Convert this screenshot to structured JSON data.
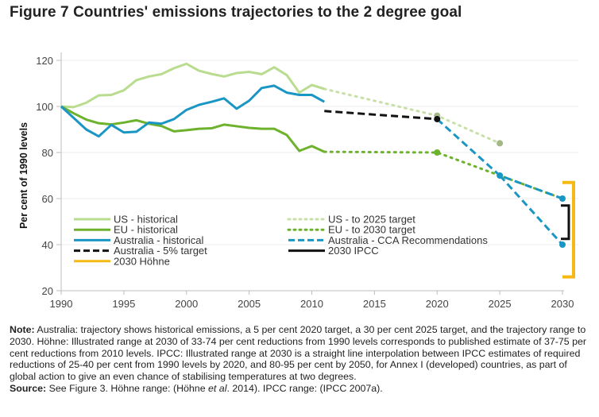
{
  "title": "Figure 7 Countries' emissions trajectories to the 2 degree goal",
  "chart_data": {
    "type": "line",
    "title": "Figure 7 Countries' emissions trajectories to the 2 degree goal",
    "xlabel": "",
    "ylabel": "Per cent of 1990 levels",
    "xlim": [
      1990,
      2030
    ],
    "ylim": [
      20,
      130
    ],
    "xticks": [
      1990,
      1995,
      2000,
      2005,
      2010,
      2015,
      2020,
      2025,
      2030
    ],
    "yticks": [
      20,
      40,
      60,
      80,
      100,
      120
    ],
    "grid": "horizontal",
    "legend_position": "inside-bottom-left",
    "colors": {
      "us": "#b9dc8f",
      "eu": "#6db22c",
      "australia": "#1a96c4",
      "black": "#111111",
      "hohne": "#f5b915",
      "us_target_dot": "#a3b886"
    },
    "series": [
      {
        "key": "us_hist",
        "name": "US - historical",
        "style": "solid",
        "color": "#b9dc8f",
        "x": [
          1990,
          1991,
          1992,
          1993,
          1994,
          1995,
          1996,
          1997,
          1998,
          1999,
          2000,
          2001,
          2002,
          2003,
          2004,
          2005,
          2006,
          2007,
          2008,
          2009,
          2010,
          2011
        ],
        "y": [
          100,
          99.7,
          101.6,
          104.8,
          105,
          107,
          111.4,
          113,
          114,
          116.6,
          118.5,
          115.5,
          114.1,
          113,
          114.5,
          115,
          114,
          117,
          113.6,
          106,
          109.3,
          107.6
        ]
      },
      {
        "key": "eu_hist",
        "name": "EU - historical",
        "style": "solid",
        "color": "#6db22c",
        "x": [
          1990,
          1991,
          1992,
          1993,
          1994,
          1995,
          1996,
          1997,
          1998,
          1999,
          2000,
          2001,
          2002,
          2003,
          2004,
          2005,
          2006,
          2007,
          2008,
          2009,
          2010,
          2011
        ],
        "y": [
          100,
          97,
          94.3,
          92.7,
          92.2,
          93,
          94,
          92.5,
          91.5,
          89.2,
          89.7,
          90.3,
          90.5,
          92.1,
          91.4,
          90.7,
          90.3,
          90.3,
          87.6,
          80.7,
          82.8,
          80.3
        ]
      },
      {
        "key": "aus_hist",
        "name": "Australia - historical",
        "style": "solid",
        "color": "#1a96c4",
        "x": [
          1990,
          1991,
          1992,
          1993,
          1994,
          1995,
          1996,
          1997,
          1998,
          1999,
          2000,
          2001,
          2002,
          2003,
          2004,
          2005,
          2006,
          2007,
          2008,
          2009,
          2010,
          2011
        ],
        "y": [
          100,
          95,
          90,
          87,
          92,
          88.7,
          89,
          93,
          92.5,
          94.5,
          98.5,
          100.7,
          102,
          103.5,
          99,
          102.5,
          108,
          109,
          106,
          105,
          105,
          102
        ]
      },
      {
        "key": "aus_5pct",
        "name": "Australia - 5% target",
        "style": "dashed",
        "color": "#111111",
        "x": [
          2011,
          2020
        ],
        "y": [
          98,
          94.5
        ],
        "end_marker": true
      },
      {
        "key": "us_target",
        "name": "US - to 2025 target",
        "style": "dotted",
        "color": "#c8e0a8",
        "x": [
          2011,
          2020,
          2025
        ],
        "y": [
          107.6,
          96,
          84
        ],
        "markers": [
          2020,
          2025
        ]
      },
      {
        "key": "eu_target",
        "name": "EU - to 2030 target",
        "style": "dotted",
        "color": "#6db22c",
        "x": [
          2011,
          2020,
          2025,
          2030
        ],
        "y": [
          80.3,
          80,
          70,
          60
        ],
        "markers": [
          2020
        ]
      },
      {
        "key": "aus_cca",
        "name": "Australia - CCA Recommendations",
        "style": "dashed",
        "color": "#1a96c4",
        "branches": [
          {
            "x": [
              2020,
              2025,
              2030
            ],
            "y": [
              94.5,
              70,
              60
            ]
          },
          {
            "x": [
              2025,
              2030
            ],
            "y": [
              70,
              40
            ]
          }
        ],
        "markers": [
          [
            2025,
            70
          ],
          [
            2030,
            60
          ],
          [
            2030,
            40
          ]
        ]
      },
      {
        "key": "ipcc_2030",
        "name": "2030 IPCC",
        "style": "bracket",
        "color": "#111111",
        "x": 2030,
        "range": [
          42.5,
          57
        ]
      },
      {
        "key": "hohne_2030",
        "name": "2030 Höhne",
        "style": "bracket",
        "color": "#f5b915",
        "x": 2030,
        "range": [
          26,
          67
        ]
      }
    ],
    "legend": [
      {
        "key": "us_hist",
        "label": "US - historical"
      },
      {
        "key": "eu_hist",
        "label": "EU - historical"
      },
      {
        "key": "aus_hist",
        "label": "Australia - historical"
      },
      {
        "key": "aus_5pct",
        "label": "Australia - 5% target"
      },
      {
        "key": "hohne_2030",
        "label": "2030 Höhne"
      },
      {
        "key": "us_target",
        "label": "US - to 2025 target"
      },
      {
        "key": "eu_target",
        "label": "EU - to 2030 target"
      },
      {
        "key": "aus_cca",
        "label": "Australia - CCA Recommendations"
      },
      {
        "key": "ipcc_2030",
        "label": "2030 IPCC"
      }
    ]
  },
  "notes": {
    "note_label": "Note:",
    "note_text": " Australia: trajectory shows historical emissions, a 5 per cent 2020 target, a 30 per cent 2025 target, and the trajectory range to 2030. Höhne: Illustrated range at 2030 of 33-74 per cent reductions from 1990 levels corresponds to published estimate of 37-75 per cent reductions from 2010 levels. IPCC: Illustrated range at 2030 is a straight line interpolation between IPCC estimates of required reductions of 25-40 per cent from 1990 levels by 2020, and 80-95 per cent by 2050, for Annex I (developed) countries, as part of global action to give an even chance of stabilising temperatures at two degrees.",
    "source_label": "Source:",
    "source_pre": " See Figure 3. Höhne range: (Höhne ",
    "source_etal": "et al",
    "source_post": ". 2014). IPCC range: (IPCC 2007a)."
  }
}
